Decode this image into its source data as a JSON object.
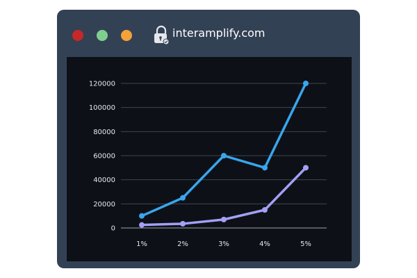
{
  "window": {
    "url": "interamplify.com",
    "icons": {
      "close": "red-circle",
      "minimize": "green-circle",
      "maximize": "orange-circle",
      "lock": "lock-icon"
    },
    "colors": {
      "frame": "#334155",
      "content_bg": "#0d1117",
      "close": "#c62828",
      "minimize": "#7ecf8e",
      "maximize": "#f4a13a"
    }
  },
  "chart_data": {
    "type": "line",
    "categories": [
      "1%",
      "2%",
      "3%",
      "4%",
      "5%"
    ],
    "series": [
      {
        "values": [
          10000,
          25000,
          60000,
          50000,
          120000
        ],
        "color": "#3aa5ee"
      },
      {
        "values": [
          2500,
          3500,
          7000,
          15000,
          50000
        ],
        "color": "#a3a0f5"
      }
    ],
    "ylim": [
      0,
      120000
    ],
    "yticks": [
      0,
      20000,
      40000,
      60000,
      80000,
      100000,
      120000
    ],
    "grid": true,
    "title": "",
    "xlabel": "",
    "ylabel": ""
  }
}
